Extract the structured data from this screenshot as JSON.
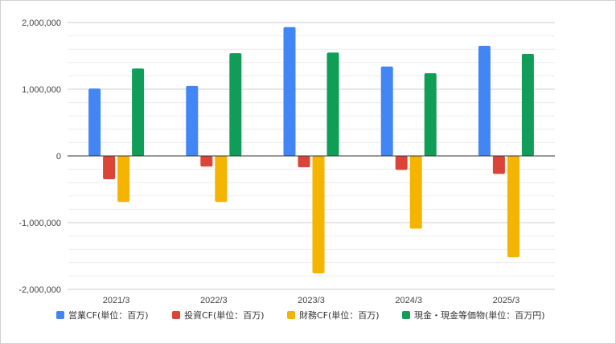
{
  "chart_data": {
    "type": "bar",
    "title": "",
    "xlabel": "",
    "ylabel": "",
    "categories": [
      "2021/3",
      "2022/3",
      "2023/3",
      "2024/3",
      "2025/3"
    ],
    "series": [
      {
        "name": "営業CF(単位：百万)",
        "color": "#4285f4",
        "values": [
          1010000,
          1050000,
          1930000,
          1340000,
          1650000
        ]
      },
      {
        "name": "投資CF(単位：百万)",
        "color": "#db4437",
        "values": [
          -350000,
          -160000,
          -170000,
          -210000,
          -270000
        ]
      },
      {
        "name": "財務CF(単位：百万)",
        "color": "#f4b400",
        "values": [
          -690000,
          -690000,
          -1760000,
          -1090000,
          -1520000
        ]
      },
      {
        "name": "現金・現金等価物(単位：百万円)",
        "color": "#0f9d58",
        "values": [
          1310000,
          1540000,
          1550000,
          1240000,
          1530000
        ]
      }
    ],
    "ylim": [
      -2000000,
      2000000
    ],
    "yticks": [
      2000000,
      1000000,
      0,
      -1000000,
      -2000000
    ],
    "ytick_labels": [
      "2,000,000",
      "1,000,000",
      "0",
      "-1,000,000",
      "-2,000,000"
    ],
    "minor_gridlines": true,
    "grid": true,
    "legend_position": "bottom"
  }
}
